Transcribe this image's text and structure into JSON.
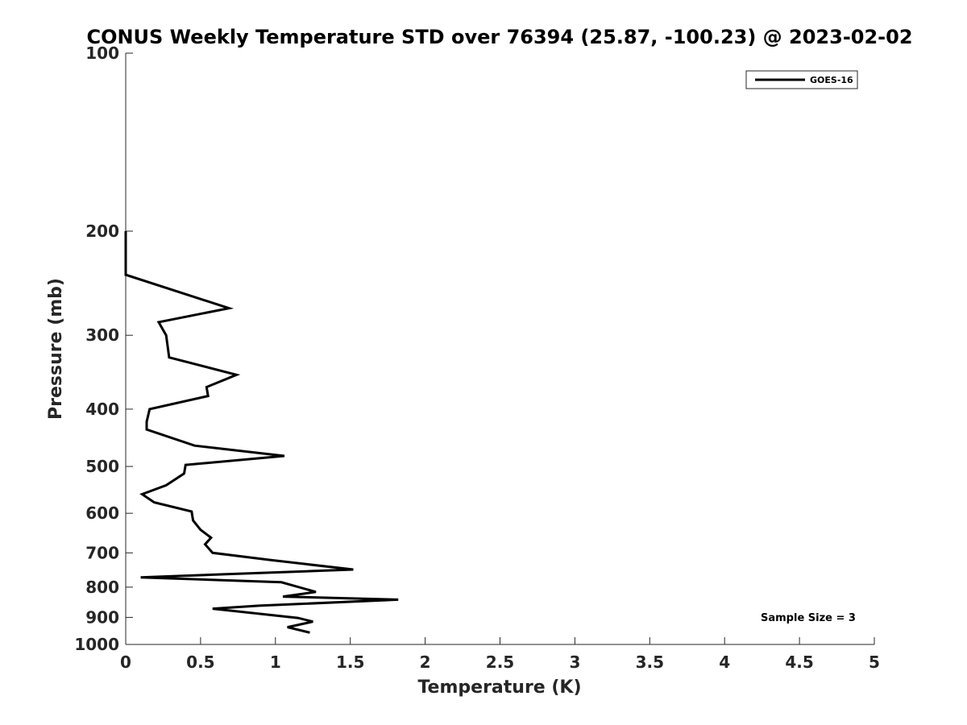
{
  "chart_data": {
    "type": "line",
    "title": "CONUS Weekly Temperature STD over 76394 (25.87, -100.23) @ 2023-02-02",
    "xlabel": "Temperature (K)",
    "ylabel": "Pressure (mb)",
    "xlim": [
      0,
      5
    ],
    "ylim": [
      100,
      1000
    ],
    "y_scale": "log",
    "y_reversed": true,
    "grid": false,
    "x_ticks": [
      "0",
      "0.5",
      "1",
      "1.5",
      "2",
      "2.5",
      "3",
      "3.5",
      "4",
      "4.5",
      "5"
    ],
    "y_ticks": [
      "100",
      "200",
      "300",
      "400",
      "500",
      "600",
      "700",
      "800",
      "900",
      "1000"
    ],
    "legend": {
      "position": "top-right",
      "entries": [
        "GOES-16"
      ]
    },
    "annotation": "Sample Size = 3",
    "series": [
      {
        "name": "GOES-16",
        "color": "#000000",
        "points": [
          [
            0.0,
            200
          ],
          [
            0.0,
            215
          ],
          [
            0.0,
            237
          ],
          [
            0.69,
            270
          ],
          [
            0.22,
            285
          ],
          [
            0.27,
            300
          ],
          [
            0.29,
            327
          ],
          [
            0.74,
            350
          ],
          [
            0.54,
            367
          ],
          [
            0.55,
            380
          ],
          [
            0.16,
            400
          ],
          [
            0.14,
            420
          ],
          [
            0.14,
            433
          ],
          [
            0.46,
            461
          ],
          [
            1.06,
            480
          ],
          [
            0.4,
            497
          ],
          [
            0.39,
            514
          ],
          [
            0.27,
            538
          ],
          [
            0.11,
            557
          ],
          [
            0.19,
            575
          ],
          [
            0.44,
            596
          ],
          [
            0.45,
            617
          ],
          [
            0.5,
            640
          ],
          [
            0.57,
            660
          ],
          [
            0.53,
            677
          ],
          [
            0.58,
            700
          ],
          [
            0.97,
            720
          ],
          [
            1.52,
            747
          ],
          [
            0.1,
            770
          ],
          [
            1.04,
            785
          ],
          [
            1.27,
            815
          ],
          [
            1.05,
            830
          ],
          [
            1.82,
            840
          ],
          [
            0.89,
            860
          ],
          [
            0.58,
            870
          ],
          [
            1.15,
            902
          ],
          [
            1.25,
            915
          ],
          [
            1.08,
            935
          ],
          [
            1.23,
            955
          ]
        ]
      }
    ]
  }
}
